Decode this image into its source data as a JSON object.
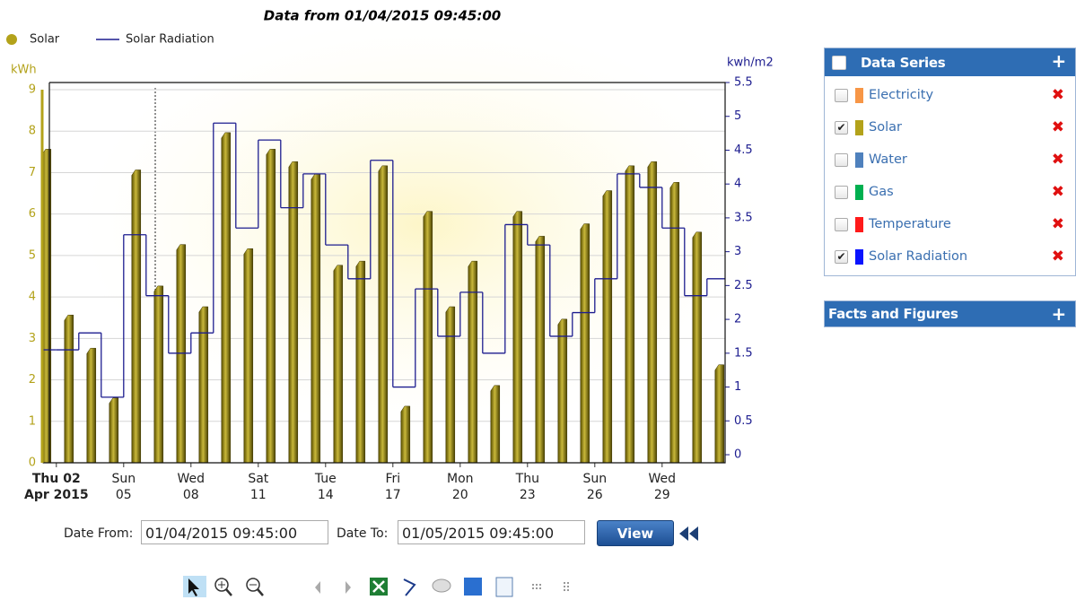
{
  "chart_data": {
    "type": "bar-line",
    "title": "Data from 01/04/2015 09:45:00",
    "categories": [
      null,
      "Thu 02",
      null,
      null,
      "Sun",
      null,
      null,
      "Wed",
      null,
      null,
      "Sat",
      null,
      null,
      "Tue",
      null,
      null,
      "Fri",
      null,
      null,
      "Mon",
      null,
      null,
      "Thu",
      null,
      null,
      "Sun",
      null,
      null,
      "Wed",
      null,
      null
    ],
    "categories_line2": [
      null,
      "Apr 2015",
      null,
      null,
      "05",
      null,
      null,
      "08",
      null,
      null,
      "11",
      null,
      null,
      "14",
      null,
      null,
      "17",
      null,
      null,
      "20",
      null,
      null,
      "23",
      null,
      null,
      "26",
      null,
      null,
      "29",
      null,
      null
    ],
    "series": [
      {
        "name": "Solar",
        "color": "#b3a21a",
        "values": [
          7.5,
          3.5,
          2.7,
          1.5,
          7.0,
          4.2,
          5.2,
          3.7,
          7.9,
          5.1,
          7.5,
          7.2,
          6.9,
          4.7,
          4.8,
          7.1,
          1.3,
          6.0,
          3.7,
          4.8,
          1.8,
          6.0,
          5.4,
          3.4,
          5.7,
          6.5,
          7.1,
          7.2,
          6.7,
          5.5,
          2.3
        ]
      },
      {
        "name": "Solar Radiation",
        "color": "#1c1c8f",
        "axis": "y2",
        "values": [
          1.55,
          1.55,
          1.8,
          0.85,
          3.25,
          2.35,
          1.5,
          1.8,
          4.9,
          3.35,
          4.65,
          3.65,
          4.15,
          3.1,
          2.6,
          4.35,
          1.0,
          2.45,
          1.75,
          2.4,
          1.5,
          3.4,
          3.1,
          1.75,
          2.1,
          2.6,
          4.15,
          3.95,
          3.35,
          2.35,
          2.6
        ]
      }
    ],
    "ylabel": "kWh",
    "y2label": "kwh/m2",
    "ylim": [
      0,
      9
    ],
    "yticks": [
      0,
      1,
      2,
      3,
      4,
      5,
      6,
      7,
      8,
      9
    ],
    "y2lim": [
      0,
      5.5
    ],
    "y2ticks": [
      0,
      0.5,
      1,
      1.5,
      2,
      2.5,
      3,
      3.5,
      4,
      4.5,
      5,
      5.5
    ],
    "grid": true,
    "legend": "top-left"
  },
  "controls": {
    "date_from_label": "Date From:",
    "date_from": "01/04/2015 09:45:00",
    "date_to_label": "Date To:",
    "date_to": "01/05/2015 09:45:00",
    "view_button": "View"
  },
  "sidebar": {
    "data_series": {
      "title": "Data Series",
      "items": [
        {
          "label": "Electricity",
          "color": "#f79646",
          "checked": false
        },
        {
          "label": "Solar",
          "color": "#b3a21a",
          "checked": true
        },
        {
          "label": "Water",
          "color": "#4f81bd",
          "checked": false
        },
        {
          "label": "Gas",
          "color": "#00b050",
          "checked": false
        },
        {
          "label": "Temperature",
          "color": "#ff1a1a",
          "checked": false
        },
        {
          "label": "Solar Radiation",
          "color": "#0a14ff",
          "checked": true
        }
      ]
    },
    "facts": {
      "title": "Facts and Figures"
    }
  }
}
